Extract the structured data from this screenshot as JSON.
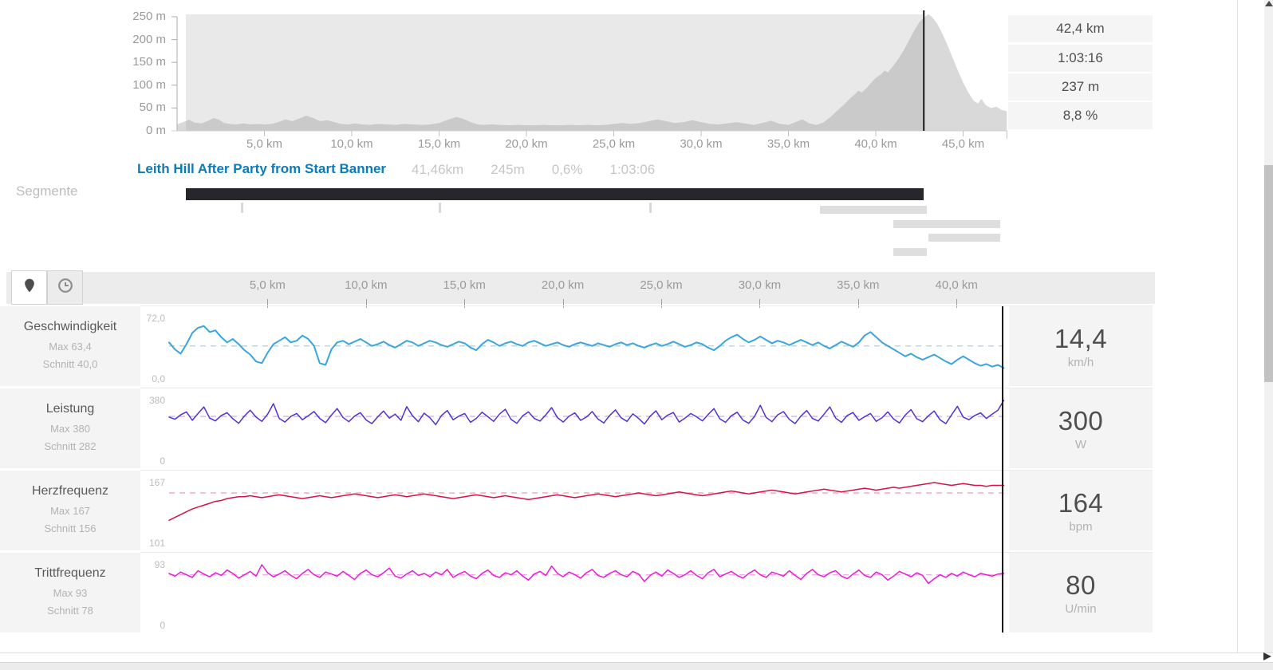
{
  "top_chart": {
    "y_tick_labels": [
      "250 m",
      "200 m",
      "150 m",
      "100 m",
      "50 m",
      "0 m"
    ],
    "x_tick_labels": [
      "5,0 km",
      "10,0 km",
      "15,0 km",
      "20,0 km",
      "25,0 km",
      "30,0 km",
      "35,0 km",
      "40,0 km",
      "45,0 km"
    ],
    "stats": [
      "42,4 km",
      "1:03:16",
      "237 m",
      "8,8 %"
    ]
  },
  "segments": {
    "section_label": "Segmente",
    "selected": {
      "name": "Leith Hill After Party from Start Banner",
      "distance": "41,46km",
      "elevation": "245m",
      "grade": "0,6%",
      "time": "1:03:06"
    }
  },
  "toolbar": {
    "buttons": [
      {
        "icon": "location-pin",
        "selected": true
      },
      {
        "icon": "clock",
        "selected": false
      }
    ]
  },
  "bottom_axis": {
    "x_tick_labels": [
      "5,0 km",
      "10,0 km",
      "15,0 km",
      "20,0 km",
      "25,0 km",
      "30,0 km",
      "35,0 km",
      "40,0 km"
    ]
  },
  "metrics": [
    {
      "label": "Geschwindigkeit",
      "max_label": "Max 63,4",
      "avg_label": "Schnitt 40,0",
      "y_max": "72,0",
      "y_min": "0,0",
      "value": "14,4",
      "unit": "km/h",
      "color": "#38a5e0",
      "avg_color": "#a9d6f0"
    },
    {
      "label": "Leistung",
      "max_label": "Max 380",
      "avg_label": "Schnitt 282",
      "y_max": "380",
      "y_min": "0",
      "value": "300",
      "unit": "W",
      "color": "#5330d2",
      "avg_color": "#c7b9ef"
    },
    {
      "label": "Herzfrequenz",
      "max_label": "Max 167",
      "avg_label": "Schnitt 156",
      "y_max": "167",
      "y_min": "101",
      "value": "164",
      "unit": "bpm",
      "color": "#d61349",
      "avg_color": "#f2abc6"
    },
    {
      "label": "Trittfrequenz",
      "max_label": "Max 93",
      "avg_label": "Schnitt 78",
      "y_max": "93",
      "y_min": "0",
      "value": "80",
      "unit": "U/min",
      "color": "#e81ad8",
      "avg_color": "#f6a8ea"
    }
  ],
  "chart_data": [
    {
      "id": "elevation",
      "type": "area",
      "x_unit": "km",
      "y_unit": "m",
      "x_range": [
        0,
        47.5
      ],
      "y_range": [
        0,
        250
      ],
      "y_ticks": [
        0,
        50,
        100,
        150,
        200,
        250
      ],
      "x_ticks": [
        5,
        10,
        15,
        20,
        25,
        30,
        35,
        40,
        45
      ],
      "selection_km": [
        0.5,
        42.75
      ],
      "cursor_km": 42.75,
      "cursor_stats": {
        "distance": "42,4 km",
        "time": "1:03:16",
        "elevation": "237 m",
        "grade": "8,8 %"
      },
      "colors": {
        "selection_bg": "#e9e9e9",
        "selection_fill": "#cacaca",
        "fill": "#d9d9d9",
        "cursor": "#1a1a1a"
      },
      "points": [
        [
          0,
          14
        ],
        [
          0.4,
          20
        ],
        [
          0.7,
          24
        ],
        [
          1,
          18
        ],
        [
          1.4,
          16
        ],
        [
          1.8,
          22
        ],
        [
          2.1,
          28
        ],
        [
          2.4,
          24
        ],
        [
          2.7,
          17
        ],
        [
          3,
          15
        ],
        [
          3.4,
          14
        ],
        [
          3.8,
          16
        ],
        [
          4.2,
          14
        ],
        [
          4.6,
          15
        ],
        [
          5,
          14
        ],
        [
          5.4,
          15
        ],
        [
          5.8,
          19
        ],
        [
          6.2,
          25
        ],
        [
          6.6,
          21
        ],
        [
          7,
          27
        ],
        [
          7.4,
          33
        ],
        [
          7.8,
          28
        ],
        [
          8.2,
          21
        ],
        [
          8.6,
          23
        ],
        [
          9,
          19
        ],
        [
          9.4,
          15
        ],
        [
          9.8,
          14
        ],
        [
          10.2,
          16
        ],
        [
          10.6,
          14
        ],
        [
          11,
          13
        ],
        [
          11.5,
          15
        ],
        [
          12,
          14
        ],
        [
          12.5,
          13
        ],
        [
          13,
          15
        ],
        [
          13.5,
          14
        ],
        [
          14,
          13
        ],
        [
          14.5,
          14
        ],
        [
          15,
          17
        ],
        [
          15.5,
          24
        ],
        [
          16,
          30
        ],
        [
          16.4,
          26
        ],
        [
          16.8,
          19
        ],
        [
          17.2,
          14
        ],
        [
          17.6,
          13
        ],
        [
          18,
          14
        ],
        [
          18.5,
          13
        ],
        [
          19,
          12
        ],
        [
          19.5,
          13
        ],
        [
          20,
          12
        ],
        [
          20.5,
          12
        ],
        [
          21,
          13
        ],
        [
          21.5,
          12
        ],
        [
          22,
          12
        ],
        [
          22.5,
          13
        ],
        [
          23,
          12
        ],
        [
          23.5,
          13
        ],
        [
          24,
          12
        ],
        [
          24.5,
          13
        ],
        [
          25,
          15
        ],
        [
          25.5,
          17
        ],
        [
          26,
          15
        ],
        [
          26.5,
          17
        ],
        [
          27,
          21
        ],
        [
          27.5,
          25
        ],
        [
          28,
          21
        ],
        [
          28.5,
          17
        ],
        [
          29,
          19
        ],
        [
          29.5,
          23
        ],
        [
          30,
          19
        ],
        [
          30.5,
          15
        ],
        [
          31,
          14
        ],
        [
          31.5,
          16
        ],
        [
          32,
          19
        ],
        [
          32.5,
          16
        ],
        [
          33,
          13
        ],
        [
          33.5,
          17
        ],
        [
          34,
          22
        ],
        [
          34.5,
          15
        ],
        [
          35,
          13
        ],
        [
          35.4,
          19
        ],
        [
          35.8,
          25
        ],
        [
          36.2,
          16
        ],
        [
          36.6,
          13
        ],
        [
          37,
          18
        ],
        [
          37.4,
          30
        ],
        [
          37.8,
          44
        ],
        [
          38.2,
          58
        ],
        [
          38.5,
          70
        ],
        [
          38.8,
          80
        ],
        [
          39,
          88
        ],
        [
          39.2,
          84
        ],
        [
          39.5,
          95
        ],
        [
          39.8,
          108
        ],
        [
          40,
          116
        ],
        [
          40.3,
          124
        ],
        [
          40.5,
          132
        ],
        [
          40.7,
          128
        ],
        [
          41,
          142
        ],
        [
          41.3,
          158
        ],
        [
          41.6,
          176
        ],
        [
          41.9,
          198
        ],
        [
          42.2,
          220
        ],
        [
          42.5,
          238
        ],
        [
          42.75,
          248
        ],
        [
          43,
          256
        ],
        [
          43.2,
          250
        ],
        [
          43.5,
          236
        ],
        [
          43.8,
          214
        ],
        [
          44.1,
          188
        ],
        [
          44.4,
          160
        ],
        [
          44.7,
          132
        ],
        [
          45,
          106
        ],
        [
          45.3,
          84
        ],
        [
          45.6,
          66
        ],
        [
          45.85,
          60
        ],
        [
          46.05,
          70
        ],
        [
          46.3,
          56
        ],
        [
          46.6,
          50
        ],
        [
          46.9,
          53
        ],
        [
          47.2,
          46
        ],
        [
          47.5,
          43
        ]
      ]
    },
    {
      "id": "speed",
      "type": "line",
      "label": "Geschwindigkeit",
      "unit": "km/h",
      "x_range": [
        0,
        42.4
      ],
      "y_range": [
        0,
        72
      ],
      "avg": 40,
      "max": 63.4,
      "cursor_value": 14.4,
      "values": [
        44,
        36,
        31,
        42,
        55,
        61,
        63,
        56,
        58,
        50,
        44,
        48,
        42,
        35,
        30,
        22,
        20,
        32,
        42,
        46,
        50,
        44,
        46,
        52,
        48,
        40,
        20,
        18,
        36,
        44,
        46,
        42,
        45,
        48,
        44,
        40,
        42,
        45,
        41,
        38,
        42,
        46,
        44,
        40,
        43,
        46,
        44,
        41,
        39,
        42,
        45,
        43,
        38,
        35,
        42,
        47,
        44,
        40,
        43,
        45,
        42,
        40,
        44,
        46,
        43,
        40,
        42,
        44,
        41,
        39,
        42,
        44,
        42,
        40,
        43,
        41,
        39,
        42,
        44,
        41,
        43,
        40,
        38,
        41,
        43,
        40,
        42,
        45,
        42,
        39,
        41,
        44,
        42,
        38,
        35,
        40,
        46,
        50,
        53,
        48,
        44,
        47,
        51,
        47,
        43,
        46,
        44,
        41,
        44,
        47,
        44,
        41,
        44,
        40,
        37,
        41,
        45,
        42,
        39,
        44,
        52,
        56,
        50,
        44,
        40,
        36,
        32,
        28,
        31,
        27,
        24,
        27,
        30,
        26,
        22,
        19,
        24,
        28,
        24,
        20,
        17,
        19,
        16,
        18,
        14.4
      ]
    },
    {
      "id": "power",
      "type": "line",
      "label": "Leistung",
      "unit": "W",
      "x_range": [
        0,
        42.4
      ],
      "y_range": [
        0,
        380
      ],
      "avg": 282,
      "max": 380,
      "cursor_value": 300,
      "values": [
        278,
        265,
        292,
        310,
        258,
        300,
        340,
        272,
        255,
        288,
        305,
        268,
        240,
        285,
        320,
        278,
        252,
        295,
        360,
        270,
        248,
        282,
        300,
        262,
        286,
        312,
        270,
        244,
        290,
        330,
        276,
        250,
        284,
        305,
        260,
        238,
        280,
        315,
        272,
        296,
        258,
        342,
        286,
        250,
        302,
        274,
        232,
        288,
        318,
        262,
        284,
        300,
        246,
        270,
        308,
        280,
        252,
        296,
        326,
        264,
        240,
        286,
        310,
        270,
        254,
        292,
        336,
        275,
        248,
        283,
        304,
        258,
        278,
        312,
        266,
        242,
        288,
        322,
        274,
        252,
        298,
        270,
        236,
        284,
        316,
        262,
        290,
        306,
        248,
        272,
        300,
        280,
        255,
        294,
        330,
        268,
        246,
        286,
        308,
        260,
        240,
        282,
        350,
        276,
        250,
        292,
        312,
        264,
        238,
        284,
        318,
        270,
        254,
        296,
        340,
        272,
        246,
        288,
        306,
        258,
        280,
        300,
        252,
        274,
        310,
        266,
        242,
        290,
        324,
        268,
        250,
        286,
        315,
        262,
        238,
        292,
        344,
        278,
        262,
        288,
        304,
        270,
        296,
        320,
        380
      ]
    },
    {
      "id": "heartrate",
      "type": "line",
      "label": "Herzfrequenz",
      "unit": "bpm",
      "x_range": [
        0,
        42.4
      ],
      "y_range": [
        101,
        167
      ],
      "avg": 156,
      "max": 167,
      "cursor_value": 164,
      "values": [
        127,
        130,
        133,
        136,
        139,
        141,
        143,
        145,
        147,
        148,
        150,
        151,
        152,
        152,
        153,
        152,
        151,
        152,
        153,
        154,
        153,
        152,
        151,
        150,
        151,
        152,
        153,
        152,
        151,
        152,
        153,
        154,
        155,
        154,
        153,
        152,
        151,
        152,
        153,
        154,
        153,
        152,
        153,
        154,
        155,
        154,
        153,
        152,
        151,
        150,
        151,
        152,
        153,
        154,
        153,
        152,
        151,
        152,
        153,
        152,
        151,
        150,
        149,
        150,
        151,
        152,
        153,
        154,
        153,
        152,
        151,
        152,
        153,
        154,
        155,
        154,
        153,
        152,
        153,
        154,
        155,
        156,
        155,
        154,
        153,
        154,
        155,
        156,
        157,
        156,
        155,
        154,
        153,
        154,
        155,
        156,
        157,
        158,
        157,
        156,
        155,
        156,
        157,
        158,
        159,
        158,
        157,
        156,
        155,
        156,
        157,
        158,
        159,
        160,
        159,
        158,
        157,
        158,
        159,
        160,
        161,
        160,
        159,
        160,
        161,
        162,
        161,
        162,
        163,
        164,
        165,
        166,
        167,
        166,
        165,
        164,
        165,
        166,
        165,
        164,
        164,
        163,
        164,
        164,
        164
      ]
    },
    {
      "id": "cadence",
      "type": "line",
      "label": "Trittfrequenz",
      "unit": "U/min",
      "x_range": [
        0,
        42.4
      ],
      "y_range": [
        0,
        93
      ],
      "avg": 78,
      "max": 93,
      "cursor_value": 80,
      "values": [
        80,
        76,
        82,
        78,
        74,
        84,
        79,
        75,
        81,
        77,
        85,
        80,
        73,
        78,
        83,
        76,
        93,
        81,
        75,
        79,
        84,
        77,
        72,
        80,
        86,
        78,
        74,
        82,
        79,
        76,
        83,
        77,
        71,
        80,
        85,
        78,
        75,
        81,
        88,
        76,
        73,
        79,
        84,
        77,
        80,
        75,
        82,
        78,
        86,
        74,
        79,
        83,
        76,
        72,
        80,
        85,
        77,
        74,
        81,
        78,
        84,
        76,
        70,
        79,
        83,
        77,
        91,
        80,
        75,
        82,
        78,
        73,
        81,
        86,
        77,
        74,
        80,
        84,
        78,
        75,
        83,
        79,
        68,
        77,
        82,
        76,
        85,
        80,
        74,
        78,
        84,
        77,
        72,
        81,
        86,
        75,
        79,
        83,
        77,
        73,
        80,
        85,
        78,
        74,
        82,
        79,
        76,
        84,
        77,
        71,
        80,
        86,
        78,
        75,
        81,
        84,
        76,
        72,
        79,
        85,
        77,
        74,
        82,
        78,
        70,
        76,
        83,
        79,
        75,
        81,
        77,
        65,
        72,
        78,
        74,
        80,
        76,
        82,
        78,
        75,
        80,
        78,
        76,
        79,
        80
      ]
    },
    {
      "id": "segments-map",
      "type": "gantt",
      "x_range_km": [
        0,
        47.5
      ],
      "main_km": [
        0.5,
        42.75
      ],
      "marker_km": [
        3.7,
        15.0,
        27.1
      ],
      "other_km": [
        [
          36.8,
          42.9
        ],
        [
          41.0,
          47.1
        ],
        [
          43.0,
          47.1
        ],
        [
          41.0,
          42.9
        ]
      ]
    }
  ]
}
